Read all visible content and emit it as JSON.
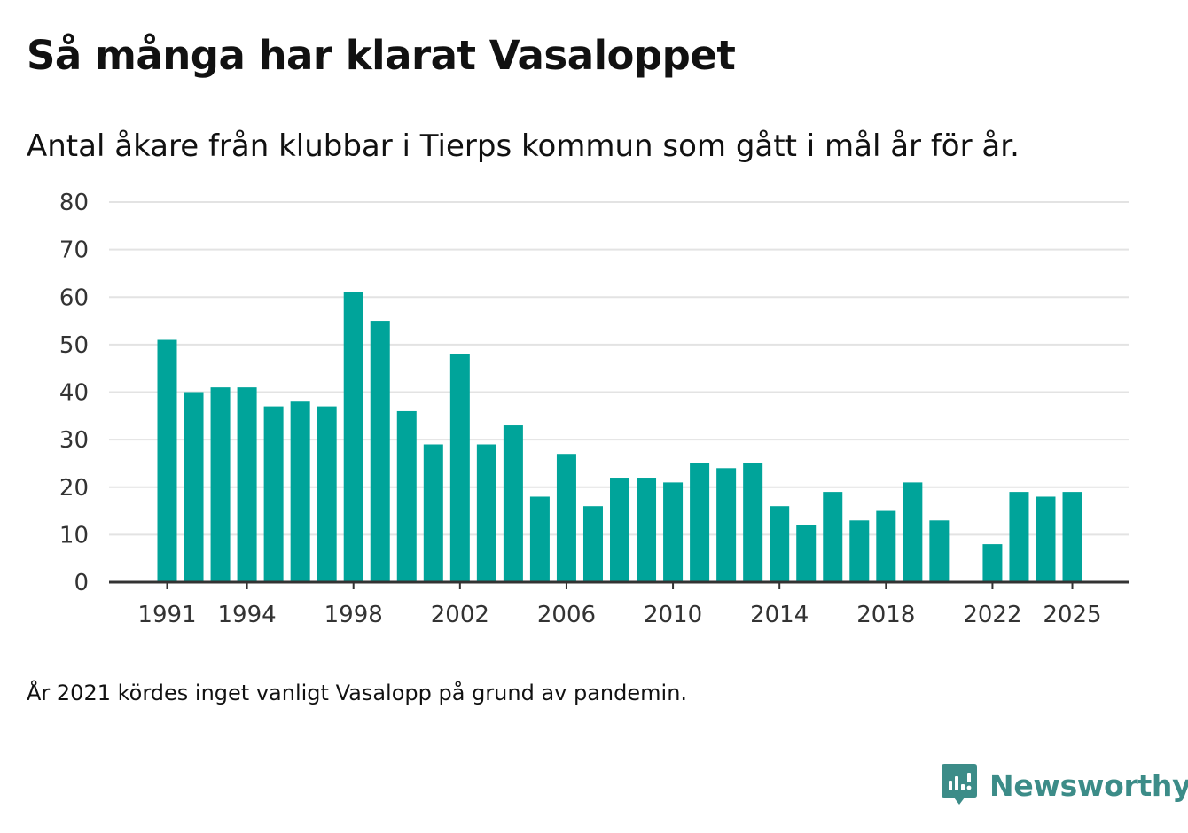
{
  "title": "Så många har klarat Vasaloppet",
  "subtitle": "Antal åkare från klubbar i Tierps kommun som gått i mål år för år.",
  "footnote": "År 2021 kördes inget vanligt Vasalopp på grund av pandemin.",
  "brand": {
    "name": "Newsworthy",
    "icon": "newsworthy-logo-icon",
    "color": "#3c8c88"
  },
  "chart_data": {
    "type": "bar",
    "title": "Så många har klarat Vasaloppet",
    "subtitle": "Antal åkare från klubbar i Tierps kommun som gått i mål år för år.",
    "xlabel": "",
    "ylabel": "",
    "x": [
      1991,
      1992,
      1993,
      1994,
      1995,
      1996,
      1997,
      1998,
      1999,
      2000,
      2001,
      2002,
      2003,
      2004,
      2005,
      2006,
      2007,
      2008,
      2009,
      2010,
      2011,
      2012,
      2013,
      2014,
      2015,
      2016,
      2017,
      2018,
      2019,
      2020,
      2021,
      2022,
      2023,
      2024,
      2025
    ],
    "values": [
      51,
      40,
      41,
      41,
      37,
      38,
      37,
      61,
      55,
      36,
      29,
      48,
      29,
      33,
      18,
      27,
      16,
      22,
      22,
      21,
      25,
      24,
      25,
      16,
      12,
      19,
      13,
      15,
      21,
      13,
      null,
      8,
      19,
      18,
      19
    ],
    "x_ticks": [
      "1991",
      "1994",
      "1998",
      "2002",
      "2006",
      "2010",
      "2014",
      "2018",
      "2022",
      "2025"
    ],
    "y_ticks": [
      "0",
      "10",
      "20",
      "30",
      "40",
      "50",
      "60",
      "70",
      "80"
    ],
    "ylim": [
      0,
      80
    ],
    "grid": true,
    "bar_color": "#00a49a",
    "gridline_color": "#e3e3e3",
    "axis_color": "#333333",
    "note": "År 2021 kördes inget vanligt Vasalopp på grund av pandemin."
  }
}
